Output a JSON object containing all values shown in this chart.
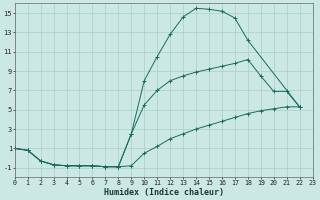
{
  "xlabel": "Humidex (Indice chaleur)",
  "xlim": [
    0,
    23
  ],
  "ylim": [
    -2,
    16
  ],
  "yticks": [
    -1,
    1,
    3,
    5,
    7,
    9,
    11,
    13,
    15
  ],
  "xticks": [
    0,
    1,
    2,
    3,
    4,
    5,
    6,
    7,
    8,
    9,
    10,
    11,
    12,
    13,
    14,
    15,
    16,
    17,
    18,
    19,
    20,
    21,
    22,
    23
  ],
  "background_color": "#cce8e4",
  "grid_color": "#aacdc8",
  "line_color": "#1a6b5e",
  "curve_top_x": [
    0,
    1,
    2,
    3,
    4,
    5,
    6,
    7,
    8,
    9,
    10,
    11,
    12,
    13,
    14,
    15,
    16,
    17,
    18,
    22
  ],
  "curve_top_y": [
    1,
    0.8,
    -0.3,
    -0.7,
    -0.8,
    -0.8,
    -0.8,
    -0.9,
    -0.9,
    2.5,
    8.0,
    10.5,
    12.8,
    14.6,
    15.5,
    15.4,
    15.2,
    14.5,
    12.2,
    5.3
  ],
  "curve_mid_x": [
    0,
    1,
    2,
    3,
    4,
    5,
    6,
    7,
    8,
    9,
    10,
    11,
    12,
    13,
    14,
    15,
    16,
    17,
    18,
    19,
    20,
    21,
    22
  ],
  "curve_mid_y": [
    1,
    0.8,
    -0.3,
    -0.7,
    -0.8,
    -0.8,
    -0.8,
    -0.9,
    -0.9,
    2.5,
    5.5,
    7.0,
    8.0,
    8.5,
    8.9,
    9.2,
    9.5,
    9.8,
    10.2,
    8.5,
    6.9,
    6.9,
    5.3
  ],
  "curve_bot_x": [
    0,
    1,
    2,
    3,
    4,
    5,
    6,
    7,
    8,
    9,
    10,
    11,
    12,
    13,
    14,
    15,
    16,
    17,
    18,
    19,
    20,
    21,
    22
  ],
  "curve_bot_y": [
    1,
    0.8,
    -0.3,
    -0.7,
    -0.8,
    -0.8,
    -0.8,
    -0.9,
    -0.9,
    -0.8,
    0.5,
    1.2,
    2.0,
    2.5,
    3.0,
    3.4,
    3.8,
    4.2,
    4.6,
    4.9,
    5.1,
    5.3,
    5.3
  ]
}
